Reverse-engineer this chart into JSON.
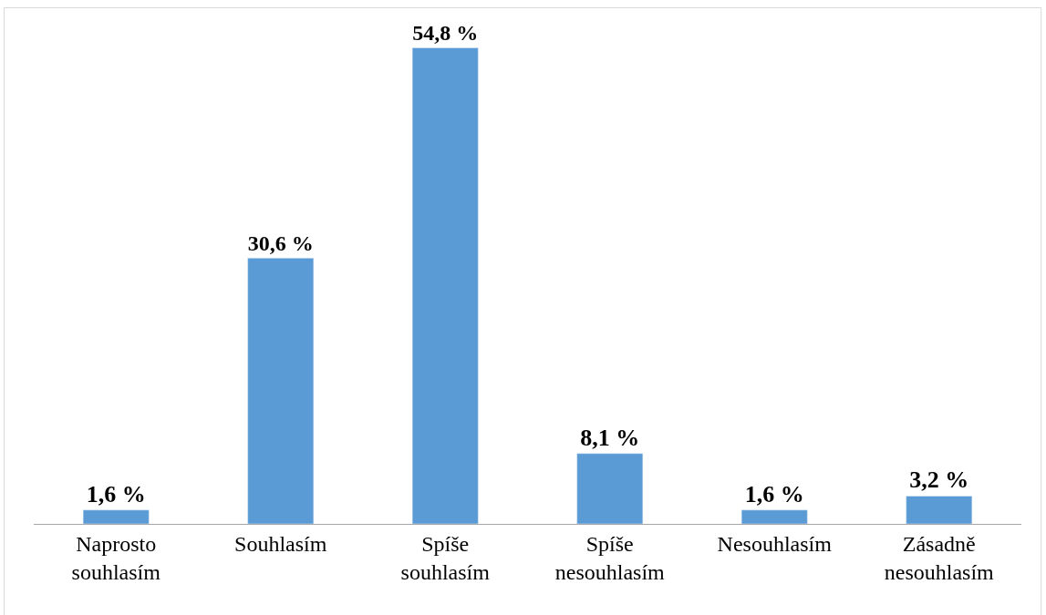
{
  "chart_data": {
    "type": "bar",
    "categories": [
      "Naprosto souhlasím",
      "Souhlasím",
      "Spíše souhlasím",
      "Spíše nesouhlasím",
      "Nesouhlasím",
      "Zásadně nesouhlasím"
    ],
    "values": [
      1.6,
      30.6,
      54.8,
      8.1,
      1.6,
      3.2
    ],
    "value_labels": [
      "1,6 %",
      "30,6 %",
      "54,8 %",
      "8,1 %",
      "1,6 %",
      "3,2 %"
    ],
    "color": "#5b9bd5"
  }
}
